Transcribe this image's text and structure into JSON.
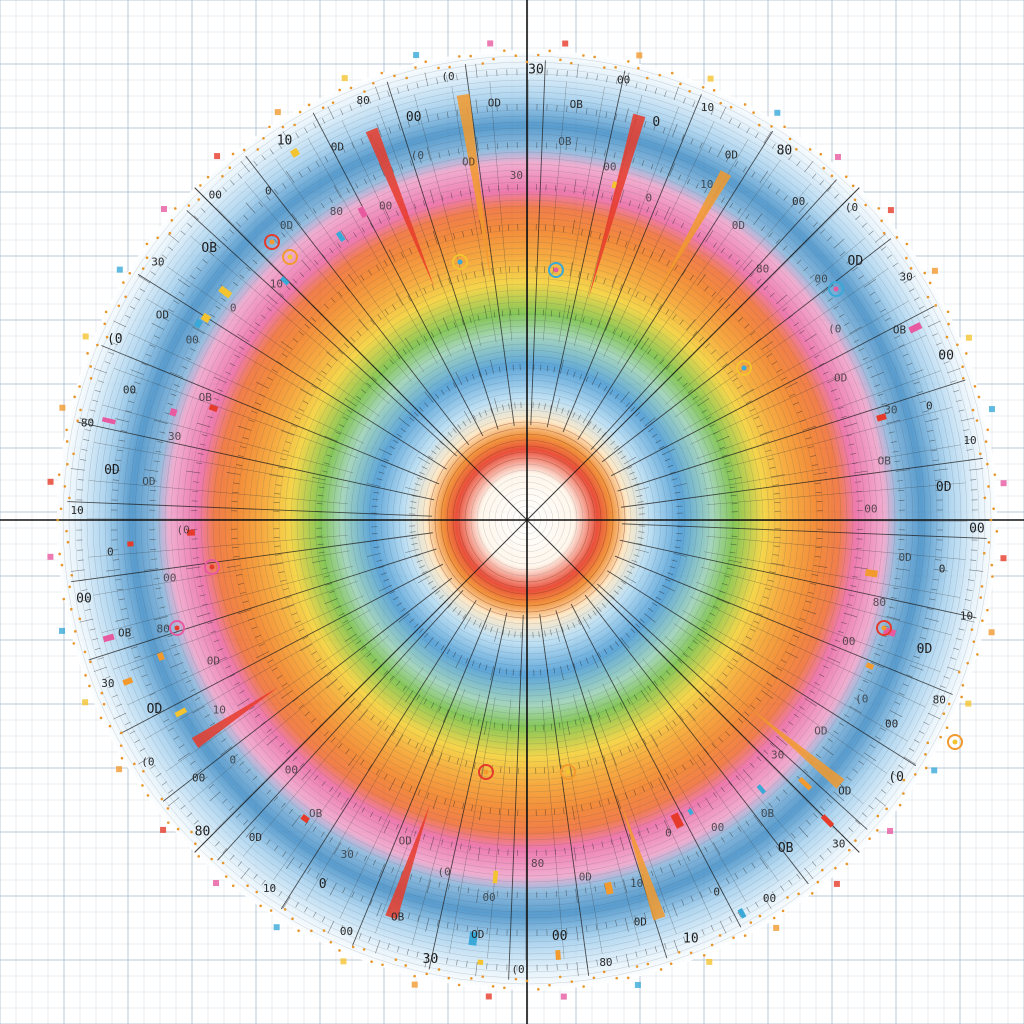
{
  "diagram": {
    "type": "concentric-polar-ring-diagram",
    "ring_colors": {
      "core_red": "#e8402a",
      "core_orange": "#f08a2c",
      "inner_blue": "#4f9ed6",
      "green": "#7cc24a",
      "yellow": "#f4d23c",
      "orange": "#f2822a",
      "pink": "#ec6fa8",
      "outer_blue": "#4a93c9",
      "outer_pale_blue": "#a9d2ee",
      "grid": "#9fb4c8",
      "edge_dots": "#e8962a"
    },
    "marker_colors": [
      "#e63b2a",
      "#f29a2e",
      "#f4c430",
      "#3aa9d8",
      "#e85aa0"
    ],
    "spoke_count": 36,
    "ring_labels": [
      "00",
      "0",
      "10",
      "0D",
      "80",
      "00",
      "(0",
      "OD",
      "30",
      "OB"
    ]
  }
}
